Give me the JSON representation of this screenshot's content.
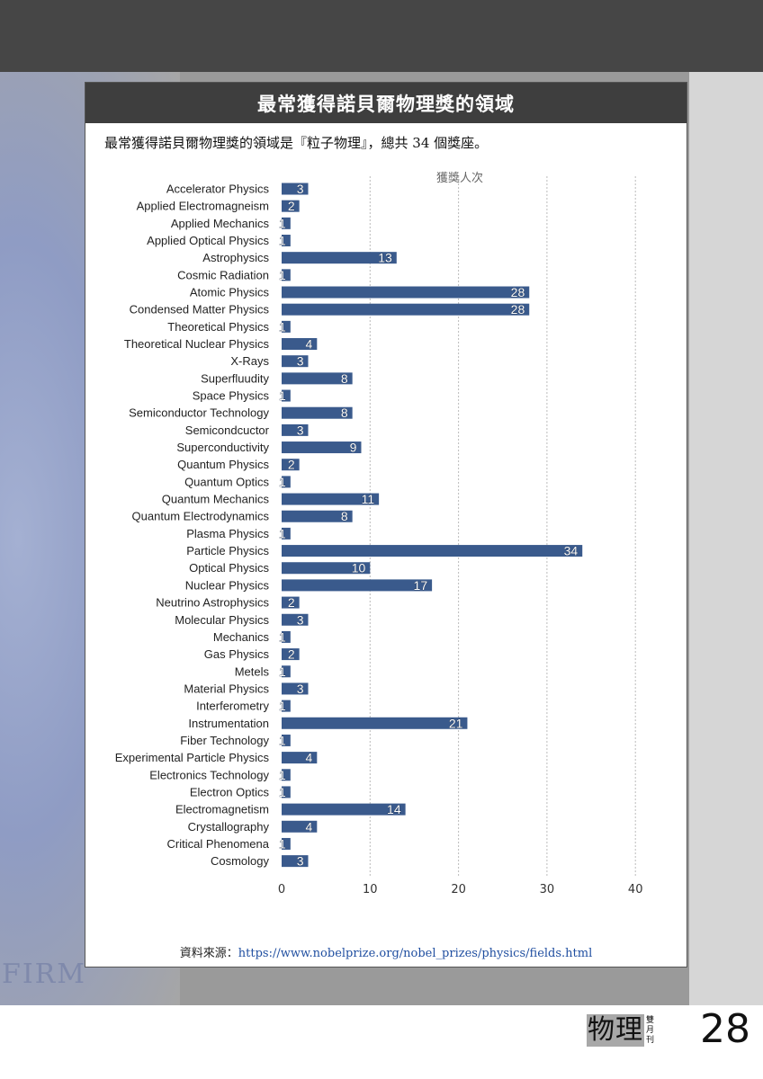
{
  "card": {
    "title": "最常獲得諾貝爾物理獎的領域",
    "subtitle": "最常獲得諾貝爾物理獎的領域是『粒子物理』，總共 34 個獎座。",
    "source_label": "資料來源：",
    "source_url": "https://www.nobelprize.org/nobel_prizes/physics/fields.html"
  },
  "background": {
    "medal_text": "FIRMA XXVI"
  },
  "footer": {
    "brand": "物理",
    "brand_sub": [
      "雙",
      "月",
      "刊"
    ],
    "page_number": "28"
  },
  "colors": {
    "bar": "#3a5a8c",
    "header": "#3e3e3e",
    "grid": "#bbbbbb"
  },
  "chart_data": {
    "type": "bar",
    "orientation": "horizontal",
    "title": "獲獎人次",
    "xlim": [
      0,
      40
    ],
    "xticks": [
      0,
      10,
      20,
      30,
      40
    ],
    "grid": true,
    "categories": [
      "Accelerator Physics",
      "Applied Electromagneism",
      "Applied Mechanics",
      "Applied Optical Physics",
      "Astrophysics",
      "Cosmic Radiation",
      "Atomic Physics",
      "Condensed Matter Physics",
      "Theoretical Physics",
      "Theoretical Nuclear Physics",
      "X-Rays",
      "Superfluudity",
      "Space Physics",
      "Semiconductor Technology",
      "Semicondcuctor",
      "Superconductivity",
      "Quantum Physics",
      "Quantum Optics",
      "Quantum Mechanics",
      "Quantum Electrodynamics",
      "Plasma Physics",
      "Particle Physics",
      "Optical Physics",
      "Nuclear Physics",
      "Neutrino Astrophysics",
      "Molecular Physics",
      "Mechanics",
      "Gas Physics",
      "Metels",
      "Material Physics",
      "Interferometry",
      "Instrumentation",
      "Fiber Technology",
      "Experimental Particle Physics",
      "Electronics Technology",
      "Electron Optics",
      "Electromagnetism",
      "Crystallography",
      "Critical Phenomena",
      "Cosmology"
    ],
    "values": [
      3,
      2,
      1,
      1,
      13,
      1,
      28,
      28,
      1,
      4,
      3,
      8,
      1,
      8,
      3,
      9,
      2,
      1,
      11,
      8,
      1,
      34,
      10,
      17,
      2,
      3,
      1,
      2,
      1,
      3,
      1,
      21,
      1,
      4,
      1,
      1,
      14,
      4,
      1,
      3
    ]
  }
}
